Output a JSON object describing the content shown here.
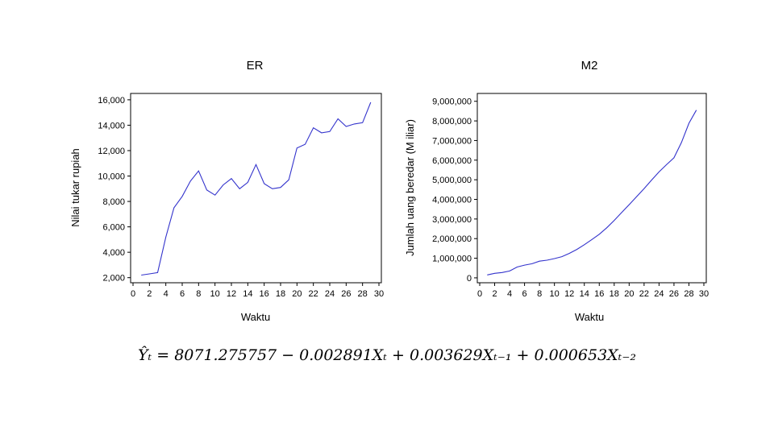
{
  "chart_data": [
    {
      "type": "line",
      "title": "ER",
      "xlabel": "Waktu",
      "ylabel": "Nilai tukar rupiah",
      "xlim": [
        0,
        30
      ],
      "ylim": [
        1600,
        16500
      ],
      "xticks": [
        "0",
        "2",
        "4",
        "6",
        "8",
        "10",
        "12",
        "14",
        "16",
        "18",
        "20",
        "22",
        "24",
        "26",
        "28",
        "30"
      ],
      "yticks": [
        "2,000",
        "4,000",
        "6,000",
        "8,000",
        "10,000",
        "12,000",
        "14,000",
        "16,000"
      ],
      "color": "#3333cc",
      "series": [
        {
          "x": [
            1,
            2,
            3,
            4,
            5,
            6,
            7,
            8,
            9,
            10,
            11,
            12,
            13,
            14,
            15,
            16,
            17,
            18,
            19,
            20,
            21,
            22,
            23,
            24,
            25,
            26,
            27,
            28,
            29
          ],
          "values": [
            2200,
            2300,
            2400,
            5200,
            7500,
            8400,
            9600,
            10400,
            8900,
            8500,
            9300,
            9800,
            9000,
            9500,
            10900,
            9400,
            9000,
            9100,
            9700,
            12200,
            12500,
            13800,
            13400,
            13500,
            14500,
            13900,
            14100,
            14200,
            15800
          ]
        }
      ]
    },
    {
      "type": "line",
      "title": "M2",
      "xlabel": "Waktu",
      "ylabel": "Jumlah uang beredar (M iliar)",
      "xlim": [
        0,
        30
      ],
      "ylim": [
        -250000,
        9400000
      ],
      "xticks": [
        "0",
        "2",
        "4",
        "6",
        "8",
        "10",
        "12",
        "14",
        "16",
        "18",
        "20",
        "22",
        "24",
        "26",
        "28",
        "30"
      ],
      "yticks": [
        "0",
        "1,000,000",
        "2,000,000",
        "3,000,000",
        "4,000,000",
        "5,000,000",
        "6,000,000",
        "7,000,000",
        "8,000,000",
        "9,000,000"
      ],
      "color": "#3333cc",
      "series": [
        {
          "x": [
            1,
            2,
            3,
            4,
            5,
            6,
            7,
            8,
            9,
            10,
            11,
            12,
            13,
            14,
            15,
            16,
            17,
            18,
            19,
            20,
            21,
            22,
            23,
            24,
            25,
            26,
            27,
            28,
            29
          ],
          "values": [
            150000,
            230000,
            270000,
            350000,
            550000,
            650000,
            720000,
            850000,
            900000,
            980000,
            1080000,
            1250000,
            1450000,
            1690000,
            1950000,
            2220000,
            2550000,
            2930000,
            3330000,
            3730000,
            4140000,
            4550000,
            4980000,
            5400000,
            5770000,
            6120000,
            6900000,
            7880000,
            8550000
          ]
        }
      ]
    }
  ],
  "equation": "Ŷₜ = 8071.275757 − 0.002891Xₜ + 0.003629Xₜ₋₁ + 0.000653Xₜ₋₂"
}
